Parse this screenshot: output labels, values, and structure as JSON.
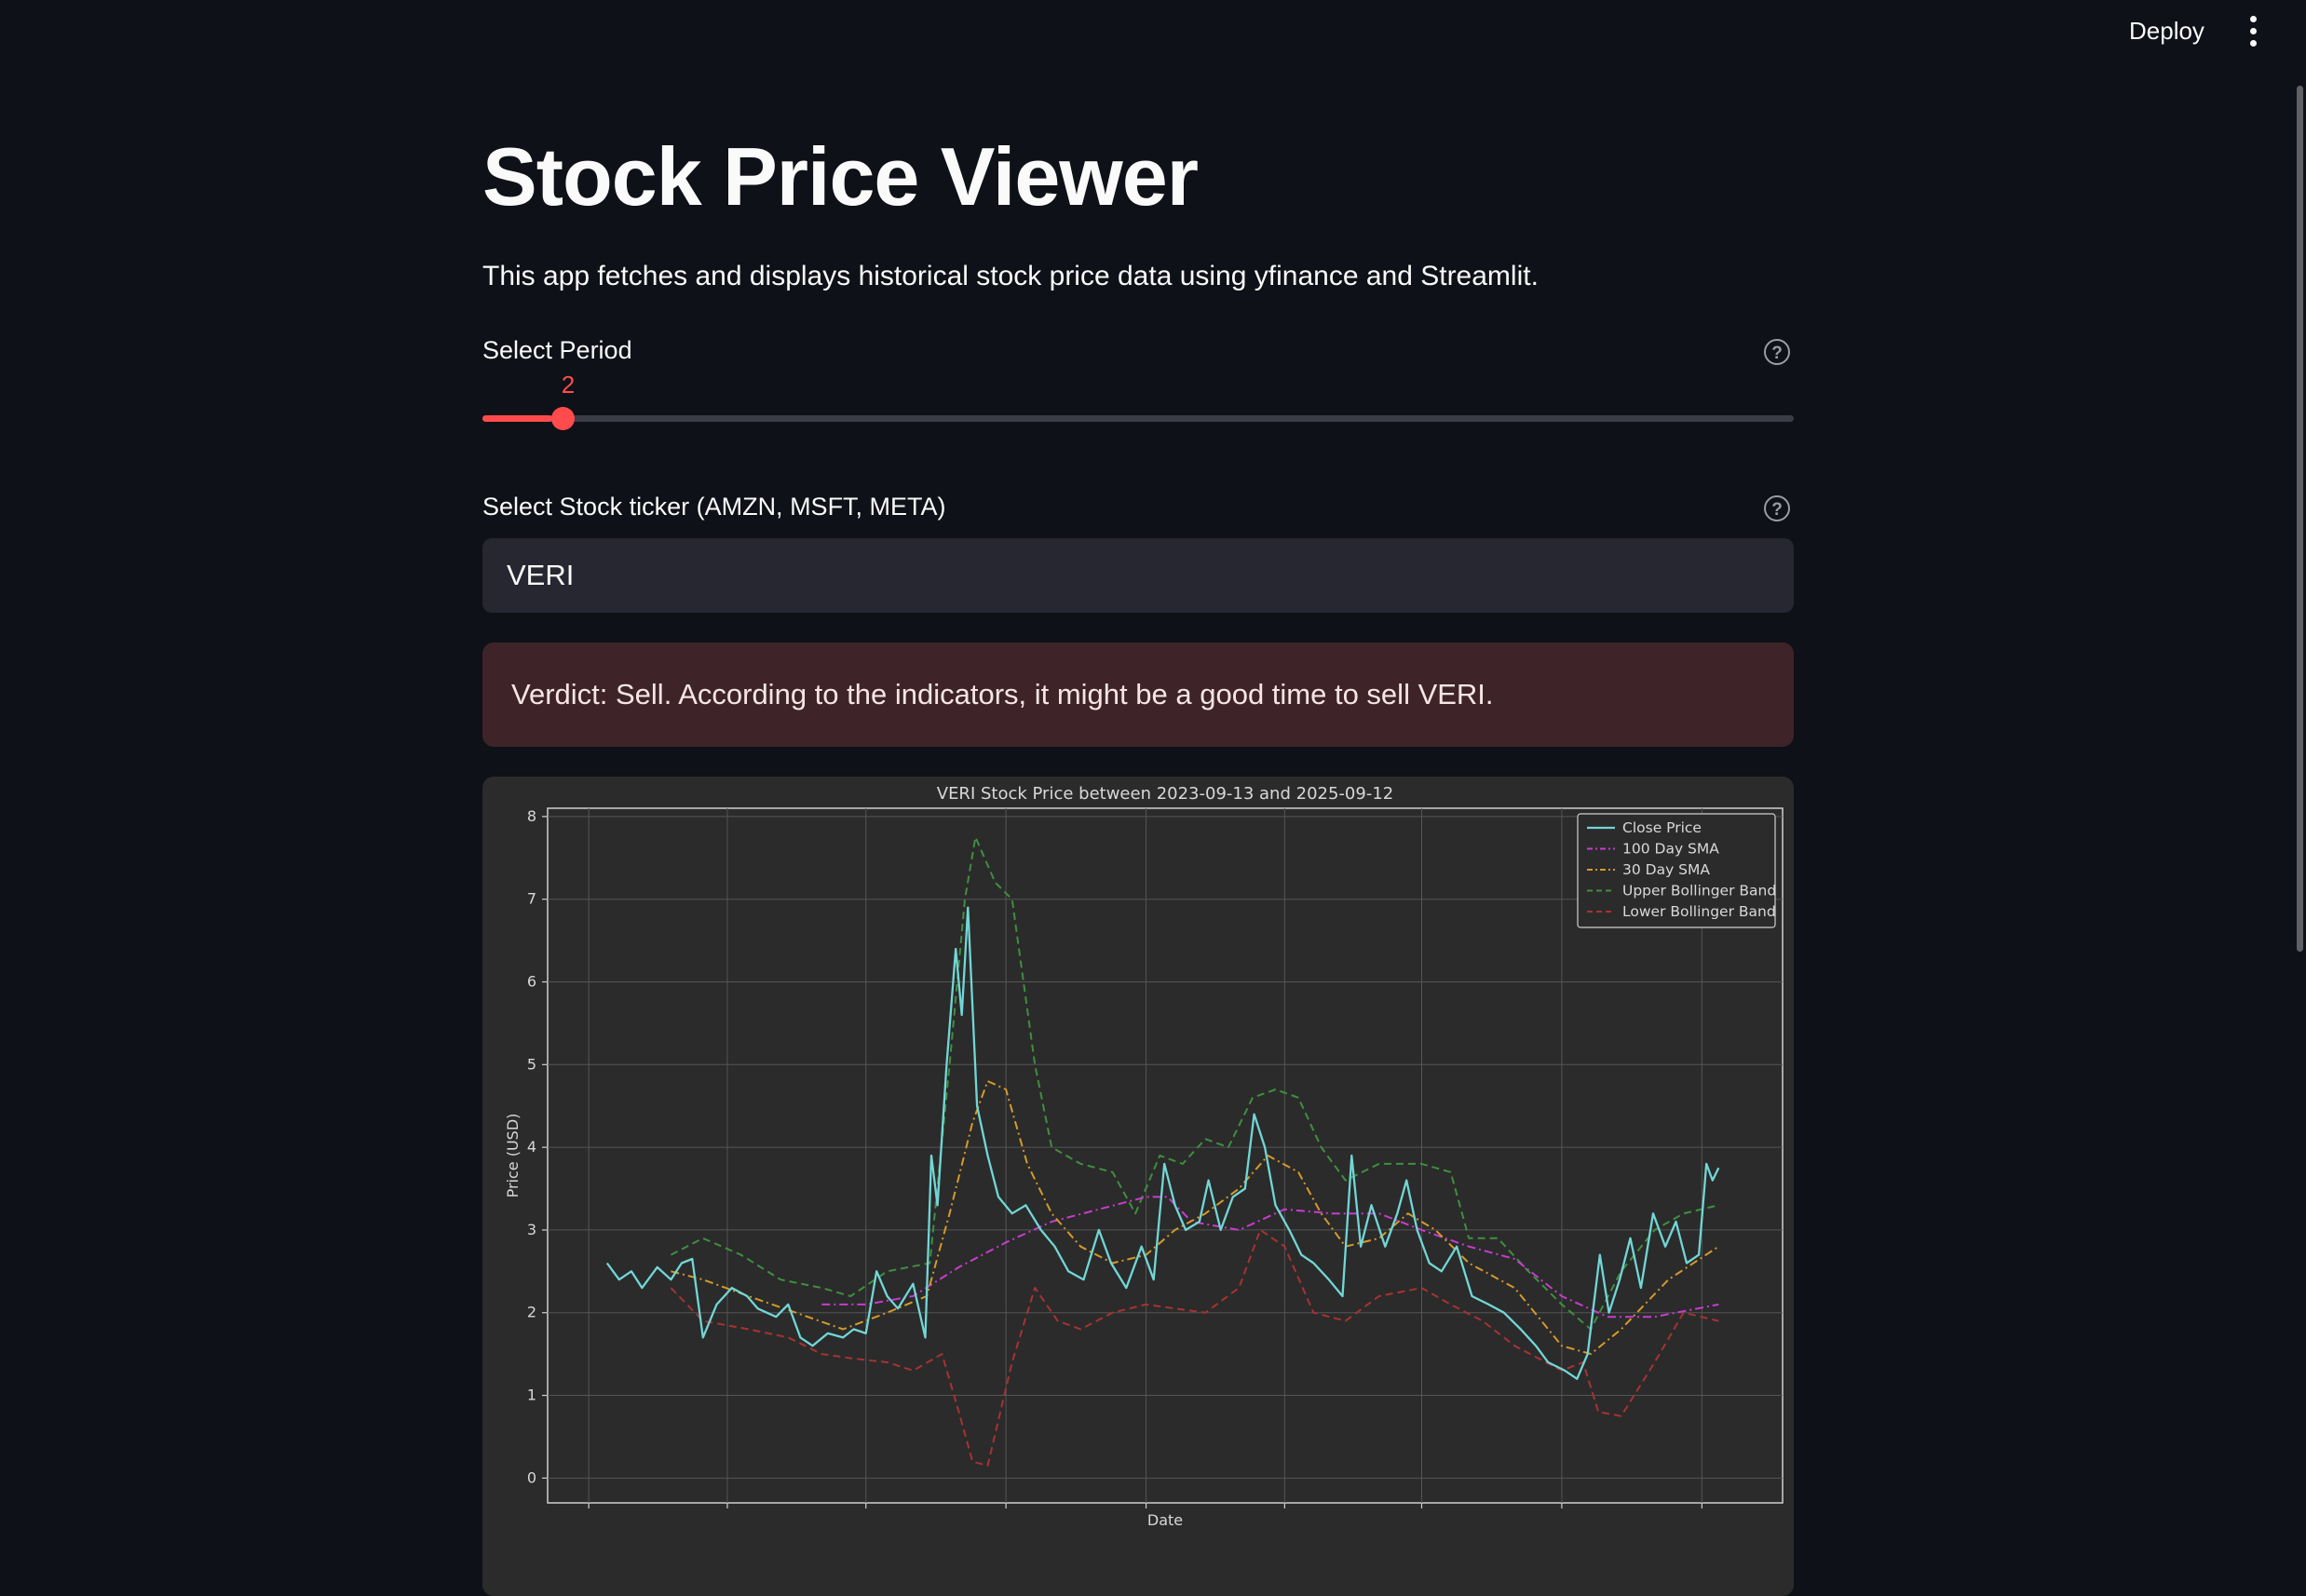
{
  "header": {
    "deploy_label": "Deploy",
    "menu_icon": "kebab-menu-icon"
  },
  "app": {
    "title": "Stock Price Viewer",
    "description": "This app fetches and displays historical stock price data using yfinance and Streamlit."
  },
  "period_slider": {
    "label": "Select Period",
    "value": 2,
    "value_text": "2",
    "fraction": 0.053,
    "help_icon": "question-circle-icon"
  },
  "ticker_input": {
    "label": "Select Stock ticker (AMZN, MSFT, META)",
    "value": "VERI",
    "help_icon": "question-circle-icon"
  },
  "verdict": {
    "text": "Verdict: Sell. According to the indicators, it might be a good time to sell VERI."
  },
  "colors": {
    "accent": "#ff4b4b",
    "background": "#0e1117",
    "input_bg": "#262730",
    "alert_bg": "#3e2428"
  },
  "chart_data": {
    "type": "line",
    "title": "VERI Stock Price between 2023-09-13 and 2025-09-12",
    "xlabel": "Date",
    "ylabel": "Price (USD)",
    "ylim": [
      -0.3,
      8.1
    ],
    "xlim": [
      "2023-08-05",
      "2025-10-24"
    ],
    "yticks": [
      0,
      1,
      2,
      3,
      4,
      5,
      6,
      7,
      8
    ],
    "xticks": [
      "2023-09-01",
      "2023-12-01",
      "2024-03-01",
      "2024-06-01",
      "2024-09-01",
      "2024-12-01",
      "2025-03-01",
      "2025-06-01",
      "2025-09-01"
    ],
    "grid": true,
    "legend": "top-right",
    "series": [
      {
        "name": "Close Price",
        "color": "#72d6d6",
        "dash": "solid",
        "width": 2.3,
        "points": [
          [
            "2023-09-13",
            2.6
          ],
          [
            "2023-09-21",
            2.4
          ],
          [
            "2023-09-29",
            2.5
          ],
          [
            "2023-10-06",
            2.3
          ],
          [
            "2023-10-16",
            2.55
          ],
          [
            "2023-10-25",
            2.4
          ],
          [
            "2023-11-01",
            2.6
          ],
          [
            "2023-11-08",
            2.65
          ],
          [
            "2023-11-15",
            1.7
          ],
          [
            "2023-11-24",
            2.1
          ],
          [
            "2023-12-04",
            2.3
          ],
          [
            "2023-12-14",
            2.2
          ],
          [
            "2023-12-21",
            2.05
          ],
          [
            "2024-01-02",
            1.95
          ],
          [
            "2024-01-10",
            2.1
          ],
          [
            "2024-01-18",
            1.7
          ],
          [
            "2024-01-26",
            1.6
          ],
          [
            "2024-02-05",
            1.75
          ],
          [
            "2024-02-15",
            1.7
          ],
          [
            "2024-02-22",
            1.8
          ],
          [
            "2024-03-01",
            1.75
          ],
          [
            "2024-03-08",
            2.5
          ],
          [
            "2024-03-15",
            2.2
          ],
          [
            "2024-03-22",
            2.05
          ],
          [
            "2024-04-01",
            2.35
          ],
          [
            "2024-04-09",
            1.7
          ],
          [
            "2024-04-13",
            3.9
          ],
          [
            "2024-04-17",
            3.3
          ],
          [
            "2024-04-23",
            5.0
          ],
          [
            "2024-04-29",
            6.4
          ],
          [
            "2024-05-03",
            5.6
          ],
          [
            "2024-05-07",
            6.9
          ],
          [
            "2024-05-13",
            4.5
          ],
          [
            "2024-05-20",
            3.9
          ],
          [
            "2024-05-27",
            3.4
          ],
          [
            "2024-06-05",
            3.2
          ],
          [
            "2024-06-14",
            3.3
          ],
          [
            "2024-06-24",
            3.0
          ],
          [
            "2024-07-03",
            2.8
          ],
          [
            "2024-07-12",
            2.5
          ],
          [
            "2024-07-22",
            2.4
          ],
          [
            "2024-08-01",
            3.0
          ],
          [
            "2024-08-09",
            2.6
          ],
          [
            "2024-08-19",
            2.3
          ],
          [
            "2024-08-29",
            2.8
          ],
          [
            "2024-09-06",
            2.4
          ],
          [
            "2024-09-13",
            3.8
          ],
          [
            "2024-09-20",
            3.3
          ],
          [
            "2024-09-27",
            3.0
          ],
          [
            "2024-10-06",
            3.1
          ],
          [
            "2024-10-12",
            3.6
          ],
          [
            "2024-10-20",
            3.0
          ],
          [
            "2024-10-28",
            3.4
          ],
          [
            "2024-11-05",
            3.5
          ],
          [
            "2024-11-11",
            4.4
          ],
          [
            "2024-11-18",
            4.0
          ],
          [
            "2024-11-25",
            3.3
          ],
          [
            "2024-12-04",
            3.0
          ],
          [
            "2024-12-12",
            2.7
          ],
          [
            "2024-12-20",
            2.6
          ],
          [
            "2024-12-30",
            2.4
          ],
          [
            "2025-01-08",
            2.2
          ],
          [
            "2025-01-14",
            3.9
          ],
          [
            "2025-01-20",
            2.8
          ],
          [
            "2025-01-27",
            3.3
          ],
          [
            "2025-02-05",
            2.8
          ],
          [
            "2025-02-13",
            3.2
          ],
          [
            "2025-02-19",
            3.6
          ],
          [
            "2025-02-26",
            3.0
          ],
          [
            "2025-03-06",
            2.6
          ],
          [
            "2025-03-14",
            2.5
          ],
          [
            "2025-03-24",
            2.8
          ],
          [
            "2025-04-03",
            2.2
          ],
          [
            "2025-04-14",
            2.1
          ],
          [
            "2025-04-24",
            2.0
          ],
          [
            "2025-05-05",
            1.8
          ],
          [
            "2025-05-15",
            1.6
          ],
          [
            "2025-05-23",
            1.4
          ],
          [
            "2025-06-03",
            1.3
          ],
          [
            "2025-06-11",
            1.2
          ],
          [
            "2025-06-18",
            1.5
          ],
          [
            "2025-06-26",
            2.7
          ],
          [
            "2025-07-02",
            2.0
          ],
          [
            "2025-07-09",
            2.4
          ],
          [
            "2025-07-16",
            2.9
          ],
          [
            "2025-07-23",
            2.3
          ],
          [
            "2025-07-31",
            3.2
          ],
          [
            "2025-08-08",
            2.8
          ],
          [
            "2025-08-15",
            3.1
          ],
          [
            "2025-08-22",
            2.6
          ],
          [
            "2025-08-30",
            2.7
          ],
          [
            "2025-09-04",
            3.8
          ],
          [
            "2025-09-08",
            3.6
          ],
          [
            "2025-09-12",
            3.75
          ]
        ]
      },
      {
        "name": "100 Day SMA",
        "color": "#c83ccf",
        "dash": "dashdot",
        "width": 2,
        "points": [
          [
            "2024-02-01",
            2.1
          ],
          [
            "2024-03-01",
            2.1
          ],
          [
            "2024-04-01",
            2.2
          ],
          [
            "2024-05-01",
            2.55
          ],
          [
            "2024-06-01",
            2.85
          ],
          [
            "2024-07-01",
            3.1
          ],
          [
            "2024-08-01",
            3.25
          ],
          [
            "2024-09-01",
            3.4
          ],
          [
            "2024-09-15",
            3.4
          ],
          [
            "2024-10-01",
            3.1
          ],
          [
            "2024-11-01",
            3.0
          ],
          [
            "2024-12-01",
            3.25
          ],
          [
            "2025-01-01",
            3.2
          ],
          [
            "2025-02-01",
            3.2
          ],
          [
            "2025-03-01",
            3.0
          ],
          [
            "2025-04-01",
            2.8
          ],
          [
            "2025-05-01",
            2.65
          ],
          [
            "2025-06-01",
            2.2
          ],
          [
            "2025-07-01",
            1.95
          ],
          [
            "2025-08-01",
            1.95
          ],
          [
            "2025-09-12",
            2.1
          ]
        ]
      },
      {
        "name": "30 Day SMA",
        "color": "#d49a2a",
        "dash": "dashdot",
        "width": 2,
        "points": [
          [
            "2023-10-25",
            2.5
          ],
          [
            "2023-11-15",
            2.4
          ],
          [
            "2023-12-15",
            2.2
          ],
          [
            "2024-01-15",
            2.0
          ],
          [
            "2024-02-15",
            1.8
          ],
          [
            "2024-03-15",
            2.0
          ],
          [
            "2024-04-10",
            2.2
          ],
          [
            "2024-04-25",
            3.2
          ],
          [
            "2024-05-10",
            4.3
          ],
          [
            "2024-05-20",
            4.8
          ],
          [
            "2024-06-01",
            4.7
          ],
          [
            "2024-06-15",
            3.8
          ],
          [
            "2024-07-01",
            3.2
          ],
          [
            "2024-07-20",
            2.8
          ],
          [
            "2024-08-10",
            2.6
          ],
          [
            "2024-09-01",
            2.7
          ],
          [
            "2024-09-20",
            3.0
          ],
          [
            "2024-10-10",
            3.2
          ],
          [
            "2024-11-01",
            3.5
          ],
          [
            "2024-11-20",
            3.9
          ],
          [
            "2024-12-10",
            3.7
          ],
          [
            "2024-12-25",
            3.2
          ],
          [
            "2025-01-10",
            2.8
          ],
          [
            "2025-02-01",
            2.9
          ],
          [
            "2025-02-20",
            3.2
          ],
          [
            "2025-03-10",
            3.0
          ],
          [
            "2025-04-01",
            2.6
          ],
          [
            "2025-05-01",
            2.3
          ],
          [
            "2025-06-01",
            1.6
          ],
          [
            "2025-06-20",
            1.5
          ],
          [
            "2025-07-10",
            1.8
          ],
          [
            "2025-08-10",
            2.4
          ],
          [
            "2025-09-12",
            2.8
          ]
        ]
      },
      {
        "name": "Upper Bollinger Band",
        "color": "#3f8f3f",
        "dash": "dashed",
        "width": 2,
        "points": [
          [
            "2023-10-25",
            2.7
          ],
          [
            "2023-11-15",
            2.9
          ],
          [
            "2023-12-10",
            2.7
          ],
          [
            "2024-01-05",
            2.4
          ],
          [
            "2024-02-01",
            2.3
          ],
          [
            "2024-02-20",
            2.2
          ],
          [
            "2024-03-15",
            2.5
          ],
          [
            "2024-04-12",
            2.6
          ],
          [
            "2024-04-25",
            5.0
          ],
          [
            "2024-05-05",
            7.0
          ],
          [
            "2024-05-12",
            7.75
          ],
          [
            "2024-05-25",
            7.2
          ],
          [
            "2024-06-05",
            7.0
          ],
          [
            "2024-06-20",
            5.0
          ],
          [
            "2024-07-01",
            4.0
          ],
          [
            "2024-07-20",
            3.8
          ],
          [
            "2024-08-10",
            3.7
          ],
          [
            "2024-08-25",
            3.2
          ],
          [
            "2024-09-10",
            3.9
          ],
          [
            "2024-09-25",
            3.8
          ],
          [
            "2024-10-10",
            4.1
          ],
          [
            "2024-10-25",
            4.0
          ],
          [
            "2024-11-10",
            4.6
          ],
          [
            "2024-11-25",
            4.7
          ],
          [
            "2024-12-10",
            4.6
          ],
          [
            "2024-12-25",
            4.0
          ],
          [
            "2025-01-10",
            3.6
          ],
          [
            "2025-02-01",
            3.8
          ],
          [
            "2025-03-01",
            3.8
          ],
          [
            "2025-03-20",
            3.7
          ],
          [
            "2025-04-01",
            2.9
          ],
          [
            "2025-04-20",
            2.9
          ],
          [
            "2025-05-10",
            2.5
          ],
          [
            "2025-06-01",
            2.1
          ],
          [
            "2025-06-20",
            1.8
          ],
          [
            "2025-07-10",
            2.5
          ],
          [
            "2025-08-01",
            3.0
          ],
          [
            "2025-08-20",
            3.2
          ],
          [
            "2025-09-12",
            3.3
          ]
        ]
      },
      {
        "name": "Lower Bollinger Band",
        "color": "#a83232",
        "dash": "dashed",
        "width": 2,
        "points": [
          [
            "2023-10-25",
            2.3
          ],
          [
            "2023-11-15",
            1.9
          ],
          [
            "2023-12-15",
            1.8
          ],
          [
            "2024-01-10",
            1.7
          ],
          [
            "2024-02-01",
            1.5
          ],
          [
            "2024-02-20",
            1.45
          ],
          [
            "2024-03-15",
            1.4
          ],
          [
            "2024-04-01",
            1.3
          ],
          [
            "2024-04-20",
            1.5
          ],
          [
            "2024-05-01",
            0.8
          ],
          [
            "2024-05-10",
            0.2
          ],
          [
            "2024-05-20",
            0.15
          ],
          [
            "2024-06-05",
            1.4
          ],
          [
            "2024-06-20",
            2.3
          ],
          [
            "2024-07-05",
            1.9
          ],
          [
            "2024-07-20",
            1.8
          ],
          [
            "2024-08-10",
            2.0
          ],
          [
            "2024-09-01",
            2.1
          ],
          [
            "2024-09-20",
            2.05
          ],
          [
            "2024-10-10",
            2.0
          ],
          [
            "2024-11-01",
            2.3
          ],
          [
            "2024-11-15",
            3.0
          ],
          [
            "2024-12-01",
            2.8
          ],
          [
            "2024-12-20",
            2.0
          ],
          [
            "2025-01-10",
            1.9
          ],
          [
            "2025-02-01",
            2.2
          ],
          [
            "2025-03-01",
            2.3
          ],
          [
            "2025-03-20",
            2.1
          ],
          [
            "2025-04-10",
            1.9
          ],
          [
            "2025-05-01",
            1.6
          ],
          [
            "2025-06-01",
            1.3
          ],
          [
            "2025-06-15",
            1.4
          ],
          [
            "2025-06-25",
            0.8
          ],
          [
            "2025-07-10",
            0.75
          ],
          [
            "2025-08-01",
            1.4
          ],
          [
            "2025-08-20",
            2.0
          ],
          [
            "2025-09-12",
            1.9
          ]
        ]
      }
    ]
  }
}
